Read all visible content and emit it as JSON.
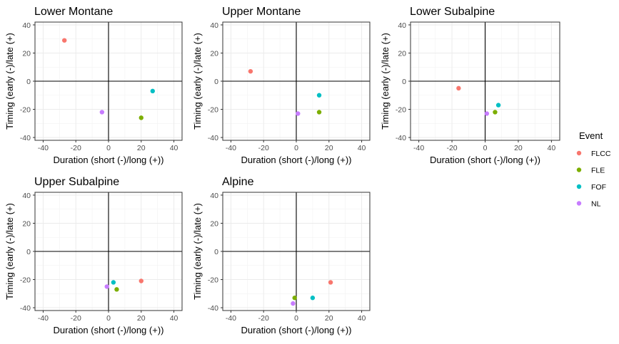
{
  "chart_data": {
    "type": "scatter",
    "xlabel": "Duration (short (-)/long (+))",
    "ylabel": "Timing (early (-)/late (+)",
    "xlim": [
      -45,
      45
    ],
    "ylim": [
      -42,
      42
    ],
    "x_ticks": [
      -40,
      -20,
      0,
      20,
      40
    ],
    "y_ticks": [
      -40,
      -20,
      0,
      20,
      40
    ],
    "grid": true,
    "reference_lines": [
      0,
      0
    ],
    "legend": {
      "title": "Event",
      "position": "right",
      "entries": [
        {
          "name": "FLCC",
          "color": "#F8766D"
        },
        {
          "name": "FLE",
          "color": "#7CAE00"
        },
        {
          "name": "FOF",
          "color": "#00BFC4"
        },
        {
          "name": "NL",
          "color": "#C77CFF"
        }
      ]
    },
    "panels": [
      {
        "title": "Lower Montane",
        "points": [
          {
            "series": "FLCC",
            "x": -27,
            "y": 29
          },
          {
            "series": "FLE",
            "x": 20,
            "y": -26
          },
          {
            "series": "FOF",
            "x": 27,
            "y": -7
          },
          {
            "series": "NL",
            "x": -4,
            "y": -22
          }
        ]
      },
      {
        "title": "Upper Montane",
        "points": [
          {
            "series": "FLCC",
            "x": -28,
            "y": 7
          },
          {
            "series": "FLE",
            "x": 14,
            "y": -22
          },
          {
            "series": "FOF",
            "x": 14,
            "y": -10
          },
          {
            "series": "NL",
            "x": 1,
            "y": -23
          }
        ]
      },
      {
        "title": "Lower Subalpine",
        "points": [
          {
            "series": "FLCC",
            "x": -16,
            "y": -5
          },
          {
            "series": "FLE",
            "x": 6,
            "y": -22
          },
          {
            "series": "FOF",
            "x": 8,
            "y": -17
          },
          {
            "series": "NL",
            "x": 1,
            "y": -23
          }
        ]
      },
      {
        "title": "Upper Subalpine",
        "points": [
          {
            "series": "FLCC",
            "x": 20,
            "y": -21
          },
          {
            "series": "FLE",
            "x": 5,
            "y": -27
          },
          {
            "series": "FOF",
            "x": 3,
            "y": -22
          },
          {
            "series": "NL",
            "x": -1,
            "y": -25
          }
        ]
      },
      {
        "title": "Alpine",
        "points": [
          {
            "series": "FLCC",
            "x": 21,
            "y": -22
          },
          {
            "series": "FLE",
            "x": -1,
            "y": -33
          },
          {
            "series": "FOF",
            "x": 10,
            "y": -33
          },
          {
            "series": "NL",
            "x": -2,
            "y": -37
          }
        ]
      }
    ]
  }
}
